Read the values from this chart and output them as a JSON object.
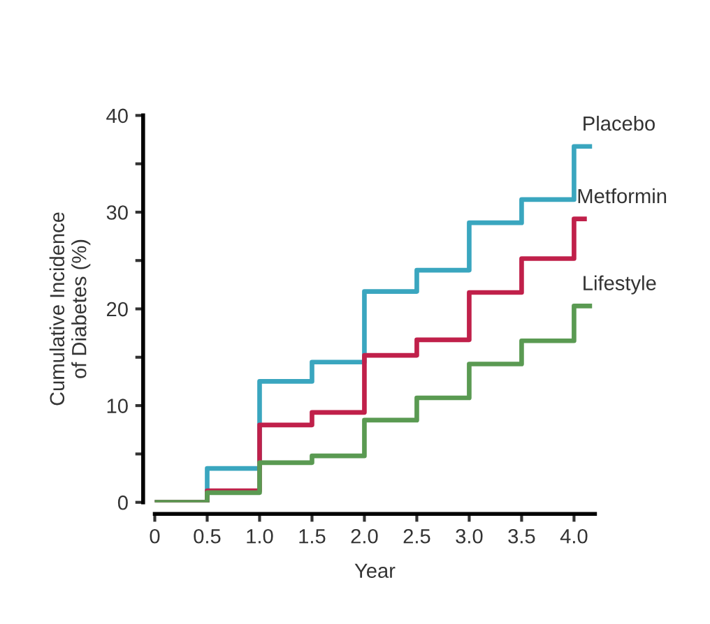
{
  "chart_data": {
    "type": "step",
    "xlabel": "Year",
    "ylabel": "Cumulative Incidence\nof Diabetes (%)",
    "xlim": [
      0,
      4.2
    ],
    "ylim": [
      0,
      40
    ],
    "xticks": [
      0,
      {
        "value": 0.5,
        "label": "0.5"
      },
      {
        "value": 1,
        "label": "1.0"
      },
      {
        "value": 1.5,
        "label": "1.5"
      },
      {
        "value": 2,
        "label": "2.0"
      },
      {
        "value": 2.5,
        "label": "2.5"
      },
      {
        "value": 3,
        "label": "3.0"
      },
      {
        "value": 3.5,
        "label": "3.5"
      },
      {
        "value": 4,
        "label": "4.0"
      }
    ],
    "yticks": [
      0,
      {
        "value": 5,
        "label": null
      },
      10,
      {
        "value": 15,
        "label": null
      },
      20,
      {
        "value": 25,
        "label": null
      },
      30,
      {
        "value": 35,
        "label": null
      },
      40
    ],
    "grid": false,
    "legend": false,
    "line_style": "solid",
    "marker": "none",
    "series": [
      {
        "name": "Placebo",
        "color": "#3aa6bf",
        "x": [
          0,
          0.5,
          1,
          1.5,
          2,
          2.5,
          3,
          3.5,
          4,
          4.15
        ],
        "values": [
          0,
          3.5,
          12.5,
          14.5,
          21.8,
          24,
          28.9,
          31.3,
          36.8,
          36.8
        ]
      },
      {
        "name": "Metformin",
        "color": "#c0204a",
        "x": [
          0,
          0.5,
          1,
          1.5,
          2,
          2.5,
          3,
          3.5,
          4,
          4.1
        ],
        "values": [
          0,
          1.2,
          8,
          9.3,
          15.2,
          16.8,
          21.7,
          25.2,
          29.3,
          29.3
        ]
      },
      {
        "name": "Lifestyle",
        "color": "#5a9a52",
        "x": [
          0,
          0.5,
          1,
          1.5,
          2,
          2.5,
          3,
          3.5,
          4,
          4.15
        ],
        "values": [
          0,
          1,
          4.1,
          4.8,
          8.5,
          10.8,
          14.3,
          16.7,
          20.3,
          20.3
        ]
      }
    ]
  }
}
